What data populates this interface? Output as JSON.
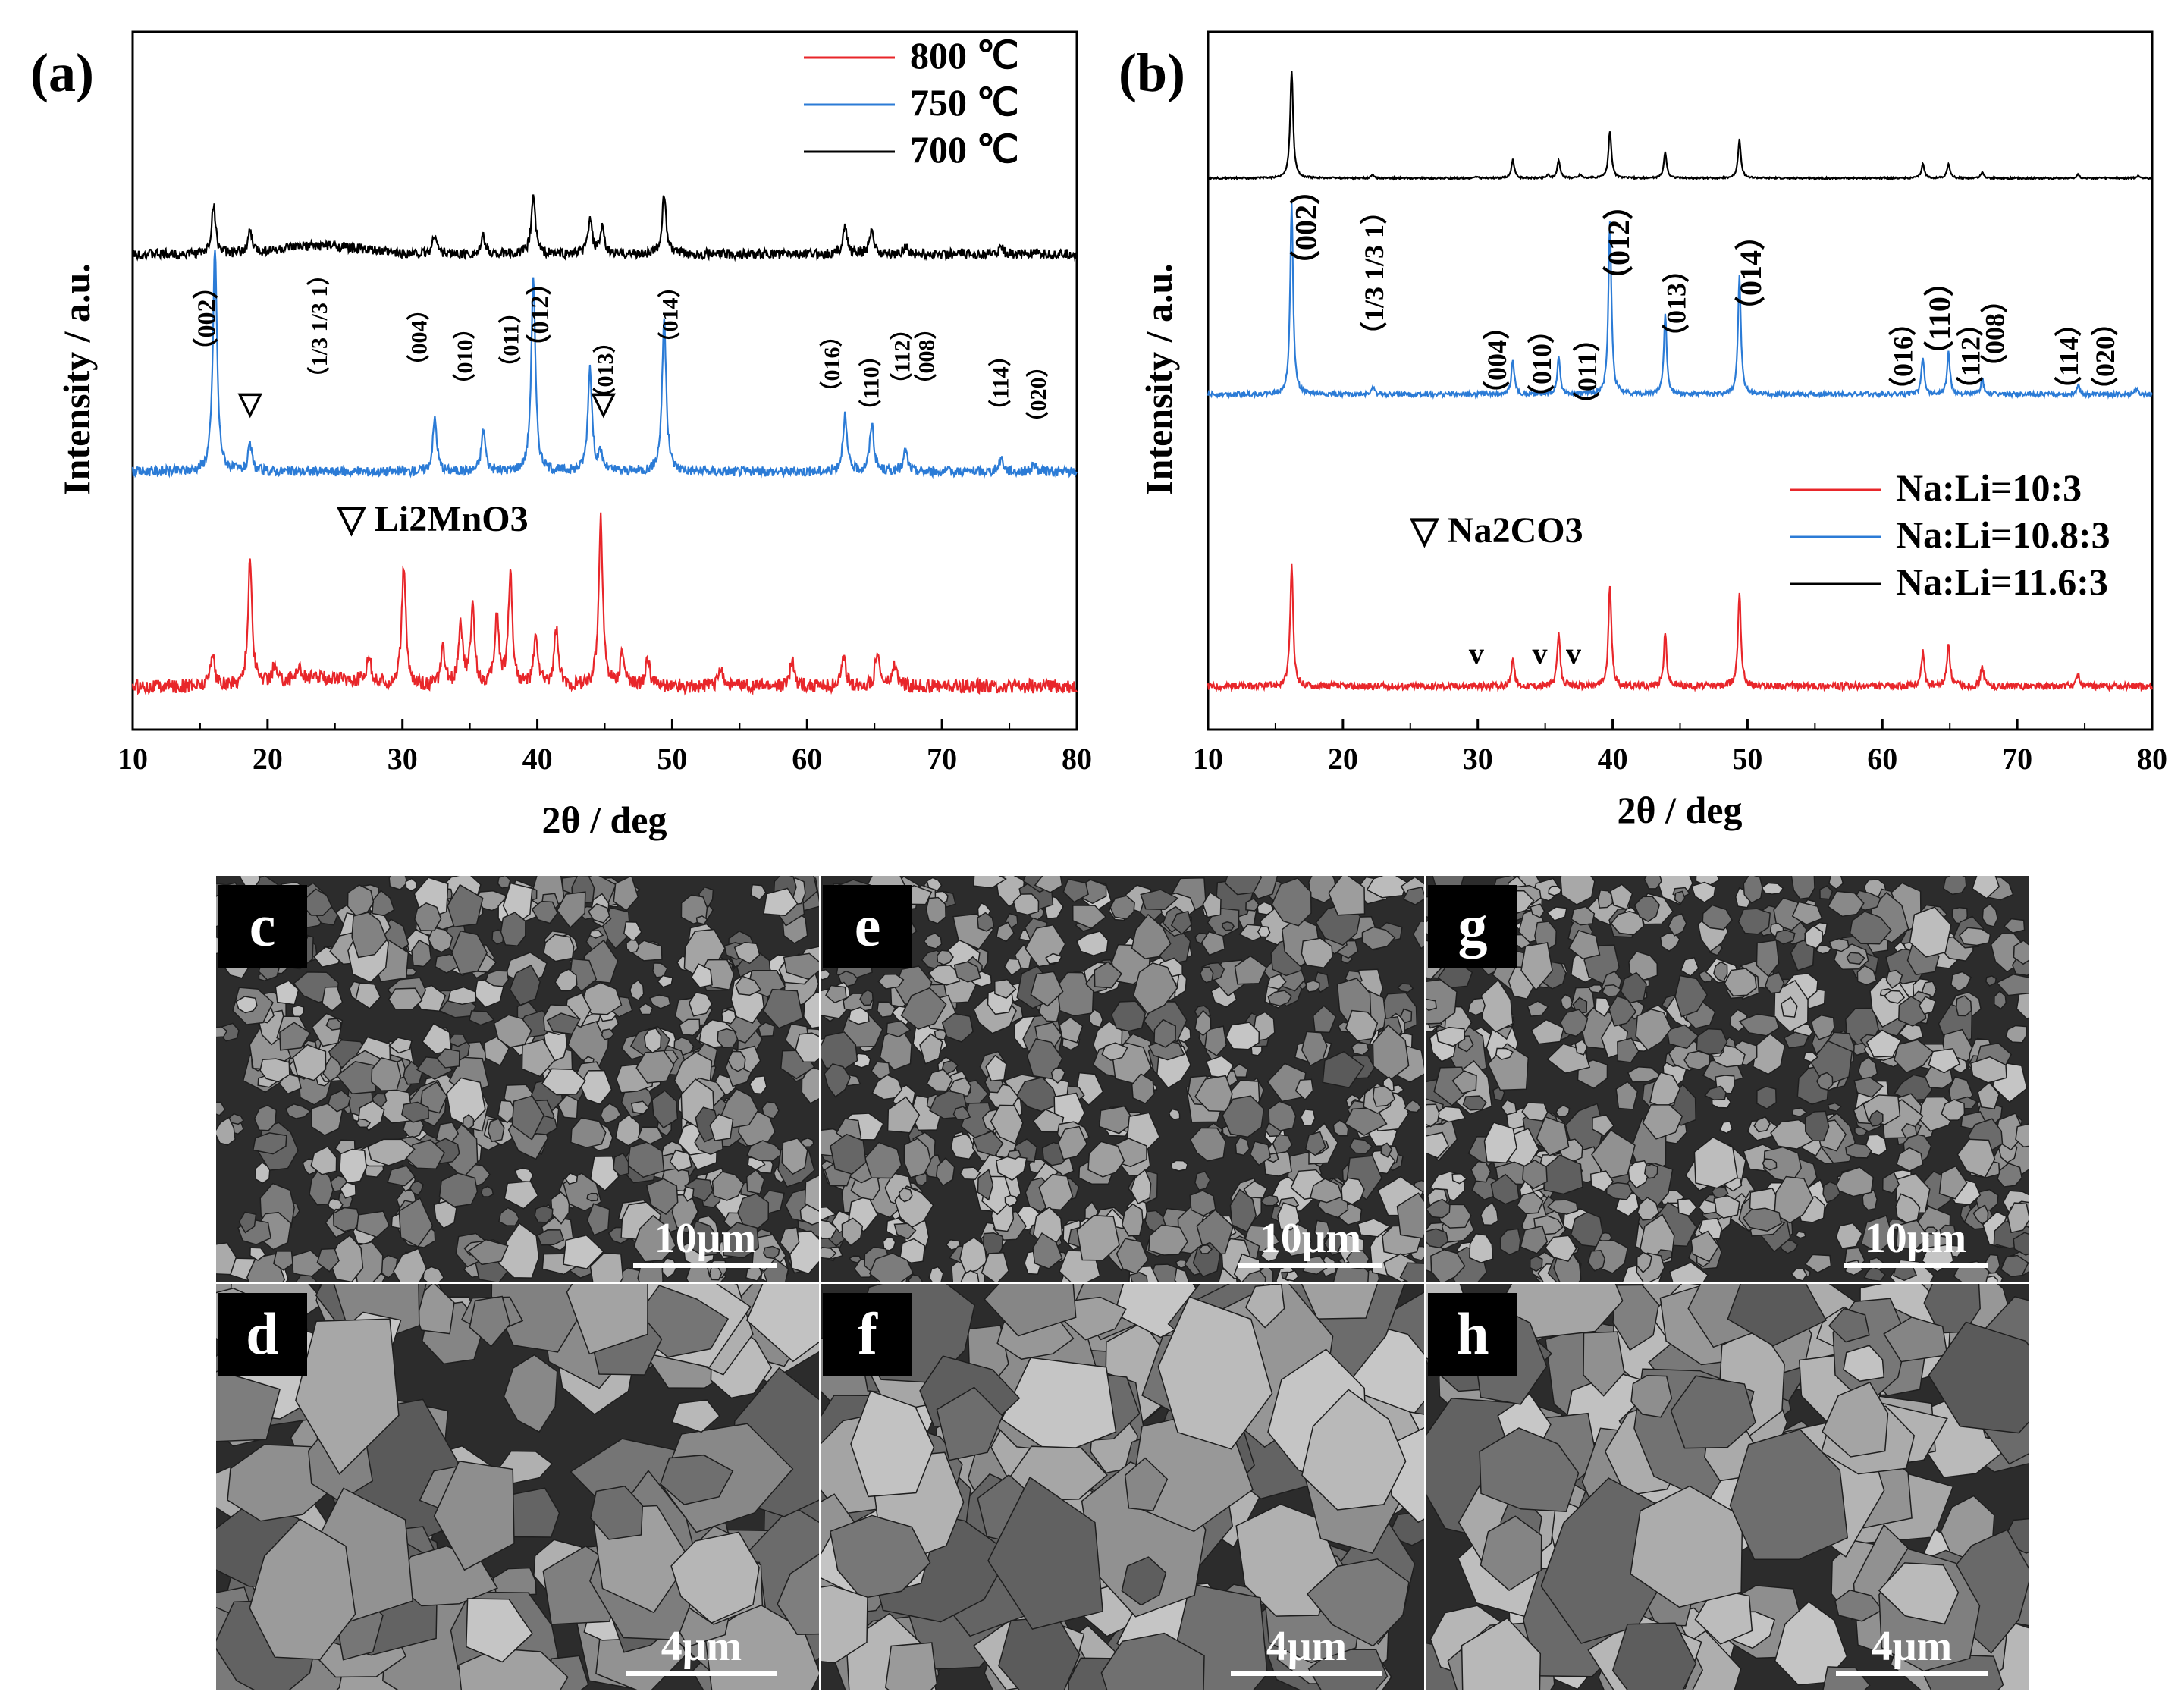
{
  "chart_data": [
    {
      "panel": "(a)",
      "type": "line",
      "title": "",
      "xlabel": "2θ / deg",
      "ylabel": "Intensity / a.u.",
      "xlim": [
        10,
        80
      ],
      "xticks": [
        "10",
        "20",
        "30",
        "40",
        "50",
        "60",
        "70",
        "80"
      ],
      "legend_position": "top-right",
      "series": [
        {
          "name": "800 ℃",
          "color": "#e8262a",
          "offset": 2.2,
          "peaks": [
            [
              15.9,
              0.25
            ],
            [
              18.7,
              0.9
            ],
            [
              20.5,
              0.12
            ],
            [
              22.3,
              0.1
            ],
            [
              27.5,
              0.2
            ],
            [
              30.1,
              0.85
            ],
            [
              33.0,
              0.25
            ],
            [
              34.3,
              0.45
            ],
            [
              35.2,
              0.55
            ],
            [
              37.0,
              0.5
            ],
            [
              38.0,
              0.8
            ],
            [
              39.9,
              0.35
            ],
            [
              41.4,
              0.4
            ],
            [
              44.7,
              1.2
            ],
            [
              46.3,
              0.25
            ],
            [
              48.2,
              0.2
            ],
            [
              53.6,
              0.15
            ],
            [
              58.9,
              0.2
            ],
            [
              62.7,
              0.2
            ],
            [
              65.2,
              0.25
            ],
            [
              66.5,
              0.15
            ]
          ]
        },
        {
          "name": "750 ℃",
          "color": "#2b7bd6",
          "offset": 0.9,
          "peaks": [
            [
              16.1,
              1.6
            ],
            [
              18.7,
              0.18
            ],
            [
              32.4,
              0.38
            ],
            [
              36.0,
              0.3
            ],
            [
              39.7,
              1.4
            ],
            [
              43.9,
              0.75
            ],
            [
              44.7,
              0.12
            ],
            [
              49.4,
              1.1
            ],
            [
              62.8,
              0.4
            ],
            [
              64.8,
              0.35
            ],
            [
              67.3,
              0.15
            ],
            [
              74.4,
              0.1
            ],
            [
              76.8,
              0.05
            ]
          ]
        },
        {
          "name": "700 ℃",
          "color": "#000000",
          "offset": 0.0,
          "peaks": [
            [
              16.0,
              0.35
            ],
            [
              18.7,
              0.15
            ],
            [
              32.4,
              0.15
            ],
            [
              36.0,
              0.12
            ],
            [
              39.7,
              0.42
            ],
            [
              43.9,
              0.25
            ],
            [
              44.8,
              0.18
            ],
            [
              49.4,
              0.42
            ],
            [
              62.8,
              0.2
            ],
            [
              64.8,
              0.18
            ],
            [
              67.3,
              0.06
            ],
            [
              74.4,
              0.05
            ]
          ]
        }
      ],
      "hkl_labels": [
        {
          "x": 16.1,
          "text": "（002）"
        },
        {
          "x": 24.4,
          "text": "（1/3 1/3 1）"
        },
        {
          "x": 31.8,
          "text": "（004）"
        },
        {
          "x": 35.2,
          "text": "（010）"
        },
        {
          "x": 38.6,
          "text": "（011）"
        },
        {
          "x": 40.8,
          "text": "（012）"
        },
        {
          "x": 45.6,
          "text": "（013）"
        },
        {
          "x": 50.4,
          "text": "（014）"
        },
        {
          "x": 62.4,
          "text": "（016）"
        },
        {
          "x": 65.3,
          "text": "（110）"
        },
        {
          "x": 67.6,
          "text": "（112）"
        },
        {
          "x": 69.4,
          "text": "（008）"
        },
        {
          "x": 74.9,
          "text": "（114）"
        },
        {
          "x": 77.7,
          "text": "（020）"
        }
      ],
      "impurity_marks": [
        {
          "x": 18.7,
          "text": "▽"
        },
        {
          "x": 44.9,
          "text": "▽"
        }
      ],
      "impurity_label": "▽ Li2MnO3"
    },
    {
      "panel": "(b)",
      "type": "line",
      "title": "",
      "xlabel": "2θ / deg",
      "ylabel": "Intensity / a.u.",
      "xlim": [
        10,
        80
      ],
      "xticks": [
        "10",
        "20",
        "30",
        "40",
        "50",
        "60",
        "70",
        "80"
      ],
      "legend_position": "bottom-right",
      "series": [
        {
          "name": "Na:Li=10:3",
          "color": "#e8262a",
          "offset": 2.25,
          "peaks": [
            [
              16.2,
              0.42
            ],
            [
              32.6,
              0.1
            ],
            [
              36.0,
              0.18
            ],
            [
              39.8,
              0.35
            ],
            [
              43.9,
              0.18
            ],
            [
              49.4,
              0.33
            ],
            [
              63.0,
              0.12
            ],
            [
              64.9,
              0.15
            ],
            [
              67.4,
              0.07
            ],
            [
              74.5,
              0.04
            ]
          ]
        },
        {
          "name": "Na:Li=10.8:3",
          "color": "#2b7bd6",
          "offset": 1.05,
          "peaks": [
            [
              16.2,
              1.0
            ],
            [
              22.2,
              0.04
            ],
            [
              32.6,
              0.18
            ],
            [
              36.0,
              0.2
            ],
            [
              39.8,
              0.92
            ],
            [
              43.9,
              0.42
            ],
            [
              49.4,
              0.62
            ],
            [
              63.0,
              0.2
            ],
            [
              64.9,
              0.22
            ],
            [
              67.4,
              0.08
            ],
            [
              74.5,
              0.05
            ],
            [
              78.8,
              0.03
            ]
          ]
        },
        {
          "name": "Na:Li=11.6:3",
          "color": "#000000",
          "offset": 0.0,
          "peaks": [
            [
              16.2,
              1.5
            ],
            [
              22.2,
              0.04
            ],
            [
              29.9,
              0.02
            ],
            [
              32.6,
              0.26
            ],
            [
              35.2,
              0.04
            ],
            [
              36.0,
              0.25
            ],
            [
              37.6,
              0.05
            ],
            [
              39.8,
              0.66
            ],
            [
              43.9,
              0.36
            ],
            [
              49.4,
              0.54
            ],
            [
              63.0,
              0.2
            ],
            [
              64.9,
              0.2
            ],
            [
              67.4,
              0.08
            ],
            [
              74.5,
              0.05
            ],
            [
              79.0,
              0.03
            ]
          ]
        }
      ],
      "hkl_labels": [
        {
          "x": 18.0,
          "text": "（002）"
        },
        {
          "x": 23.0,
          "text": "（1/3 1/3 1）"
        },
        {
          "x": 32.1,
          "text": "（004）"
        },
        {
          "x": 35.4,
          "text": "（010）"
        },
        {
          "x": 38.8,
          "text": "（011）"
        },
        {
          "x": 41.2,
          "text": "（012）"
        },
        {
          "x": 45.4,
          "text": "（013）"
        },
        {
          "x": 51.0,
          "text": "（014）"
        },
        {
          "x": 62.2,
          "text": "（016）"
        },
        {
          "x": 65.0,
          "text": "（110）"
        },
        {
          "x": 67.2,
          "text": "（112）"
        },
        {
          "x": 69.0,
          "text": "（008）"
        },
        {
          "x": 74.5,
          "text": "（114）"
        },
        {
          "x": 77.2,
          "text": "（020）"
        }
      ],
      "impurity_marks": [
        {
          "x": 29.9,
          "text": "v"
        },
        {
          "x": 34.6,
          "text": "v"
        },
        {
          "x": 37.1,
          "text": "v"
        }
      ],
      "impurity_label": "▽ Na2CO3"
    }
  ],
  "sem_panels": [
    {
      "letter": "c",
      "scale": "10μm",
      "tone": "#6f6f6f"
    },
    {
      "letter": "e",
      "scale": "10μm",
      "tone": "#727272"
    },
    {
      "letter": "g",
      "scale": "10μm",
      "tone": "#767676"
    },
    {
      "letter": "d",
      "scale": "4μm",
      "tone": "#666666"
    },
    {
      "letter": "f",
      "scale": "4μm",
      "tone": "#6a6a6a"
    },
    {
      "letter": "h",
      "scale": "4μm",
      "tone": "#5e5e5e"
    }
  ]
}
